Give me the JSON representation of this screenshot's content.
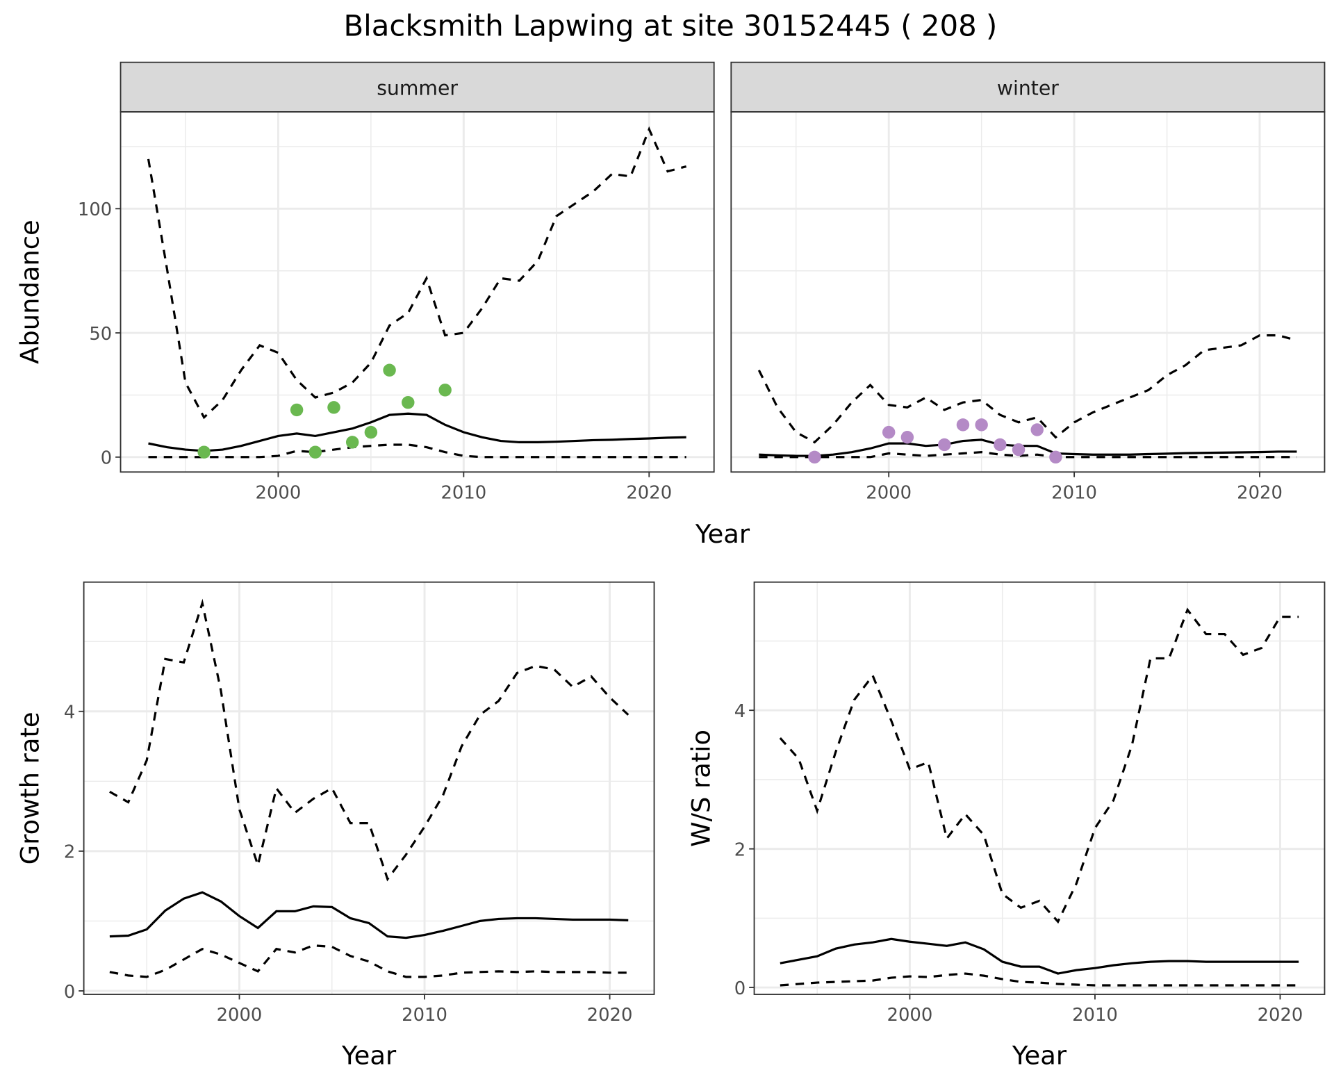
{
  "title": "Blacksmith Lapwing at site 30152445 ( 208 )",
  "colors": {
    "summer_points": "#6ab850",
    "winter_points": "#b48ac6",
    "line": "#000000",
    "strip_bg": "#d9d9d9",
    "grid": "#ebebeb"
  },
  "chart_data": [
    {
      "type": "line",
      "panel": "summer",
      "strip": "summer",
      "xlabel": "Year",
      "ylabel": "Abundance",
      "xlim": [
        1991.5,
        2023.5
      ],
      "ylim": [
        -6,
        139
      ],
      "xticks": [
        2000,
        2010,
        2020
      ],
      "yticks": [
        0,
        50,
        100
      ],
      "years": [
        1993,
        1994,
        1995,
        1996,
        1997,
        1998,
        1999,
        2000,
        2001,
        2002,
        2003,
        2004,
        2005,
        2006,
        2007,
        2008,
        2009,
        2010,
        2011,
        2012,
        2013,
        2014,
        2015,
        2016,
        2017,
        2018,
        2019,
        2020,
        2021,
        2022
      ],
      "series": [
        {
          "name": "upper",
          "style": "dashed",
          "values": [
            120,
            76,
            30,
            16,
            23,
            35,
            45,
            42,
            31,
            24,
            26,
            30,
            38,
            53,
            58,
            72,
            49,
            50,
            60,
            72,
            71,
            79,
            97,
            102,
            107,
            114,
            113,
            132,
            115,
            117
          ]
        },
        {
          "name": "estimate",
          "style": "solid",
          "values": [
            5.5,
            4,
            3,
            2.5,
            3,
            4.5,
            6.5,
            8.5,
            9.5,
            8.5,
            10,
            11.5,
            14,
            17,
            17.5,
            17,
            13,
            10,
            8,
            6.5,
            6,
            6,
            6.2,
            6.5,
            6.8,
            7,
            7.3,
            7.5,
            7.8,
            8
          ]
        },
        {
          "name": "lower",
          "style": "dashed",
          "values": [
            0,
            0,
            0,
            0,
            0,
            0,
            0,
            0.5,
            2.5,
            2,
            3,
            4,
            4.5,
            5,
            5,
            4,
            2,
            0.5,
            0,
            0,
            0,
            0,
            0,
            0,
            0,
            0,
            0,
            0,
            0,
            0
          ]
        }
      ],
      "points": {
        "x": [
          1996,
          2001,
          2002,
          2003,
          2004,
          2005,
          2006,
          2007,
          2009
        ],
        "y": [
          2,
          19,
          2,
          20,
          6,
          10,
          35,
          22,
          27
        ]
      }
    },
    {
      "type": "line",
      "panel": "winter",
      "strip": "winter",
      "xlabel": "Year",
      "ylabel": "",
      "xlim": [
        1991.5,
        2023.5
      ],
      "ylim": [
        -6,
        139
      ],
      "xticks": [
        2000,
        2010,
        2020
      ],
      "yticks": [],
      "years": [
        1993,
        1994,
        1995,
        1996,
        1997,
        1998,
        1999,
        2000,
        2001,
        2002,
        2003,
        2004,
        2005,
        2006,
        2007,
        2008,
        2009,
        2010,
        2011,
        2012,
        2013,
        2014,
        2015,
        2016,
        2017,
        2018,
        2019,
        2020,
        2021,
        2022
      ],
      "series": [
        {
          "name": "upper",
          "style": "dashed",
          "values": [
            35,
            20,
            10,
            6,
            13,
            22,
            29,
            21,
            20,
            24,
            19,
            22,
            23,
            17,
            14,
            16,
            8,
            14,
            18,
            21,
            24,
            27,
            33,
            37,
            43,
            44,
            45,
            49,
            49,
            47
          ]
        },
        {
          "name": "estimate",
          "style": "solid",
          "values": [
            1,
            0.7,
            0.5,
            0.5,
            1,
            2,
            3.5,
            5.5,
            5.5,
            4.5,
            5,
            6.5,
            7,
            5,
            4.5,
            4.5,
            1.5,
            1.2,
            1,
            1,
            1,
            1.2,
            1.4,
            1.6,
            1.7,
            1.8,
            1.9,
            2,
            2.2,
            2.2
          ]
        },
        {
          "name": "lower",
          "style": "dashed",
          "values": [
            0,
            0,
            0,
            0,
            0,
            0,
            0,
            1.5,
            1,
            0.5,
            1,
            1.5,
            2,
            1,
            0.5,
            1,
            0,
            0,
            0,
            0,
            0,
            0,
            0,
            0,
            0,
            0,
            0,
            0,
            0,
            0
          ]
        }
      ],
      "points": {
        "x": [
          1996,
          2000,
          2001,
          2003,
          2004,
          2005,
          2006,
          2007,
          2008,
          2009
        ],
        "y": [
          0,
          10,
          8,
          5,
          13,
          13,
          5,
          3,
          11,
          0
        ]
      }
    },
    {
      "type": "line",
      "panel": "growth",
      "xlabel": "Year",
      "ylabel": "Growth rate",
      "xlim": [
        1991.6,
        2022.4
      ],
      "ylim": [
        -0.05,
        5.85
      ],
      "xticks": [
        2000,
        2010,
        2020
      ],
      "yticks": [
        0,
        2,
        4
      ],
      "years": [
        1993,
        1994,
        1995,
        1996,
        1997,
        1998,
        1999,
        2000,
        2001,
        2002,
        2003,
        2004,
        2005,
        2006,
        2007,
        2008,
        2009,
        2010,
        2011,
        2012,
        2013,
        2014,
        2015,
        2016,
        2017,
        2018,
        2019,
        2020,
        2021
      ],
      "series": [
        {
          "name": "upper",
          "style": "dashed",
          "values": [
            2.85,
            2.7,
            3.3,
            4.75,
            4.7,
            5.55,
            4.3,
            2.6,
            1.8,
            2.9,
            2.55,
            2.75,
            2.9,
            2.4,
            2.4,
            1.6,
            1.95,
            2.35,
            2.8,
            3.5,
            3.95,
            4.15,
            4.55,
            4.65,
            4.6,
            4.35,
            4.5,
            4.2,
            3.95
          ]
        },
        {
          "name": "estimate",
          "style": "solid",
          "values": [
            0.78,
            0.79,
            0.88,
            1.15,
            1.32,
            1.41,
            1.28,
            1.07,
            0.9,
            1.14,
            1.14,
            1.21,
            1.2,
            1.04,
            0.97,
            0.78,
            0.76,
            0.8,
            0.86,
            0.93,
            1,
            1.03,
            1.04,
            1.04,
            1.03,
            1.02,
            1.02,
            1.02,
            1.01
          ]
        },
        {
          "name": "lower",
          "style": "dashed",
          "values": [
            0.27,
            0.22,
            0.2,
            0.3,
            0.45,
            0.6,
            0.52,
            0.4,
            0.28,
            0.6,
            0.55,
            0.65,
            0.63,
            0.5,
            0.42,
            0.28,
            0.2,
            0.2,
            0.22,
            0.26,
            0.27,
            0.28,
            0.27,
            0.28,
            0.27,
            0.27,
            0.27,
            0.26,
            0.26
          ]
        }
      ]
    },
    {
      "type": "line",
      "panel": "ratio",
      "xlabel": "Year",
      "ylabel": "W/S ratio",
      "xlim": [
        1991.6,
        2022.4
      ],
      "ylim": [
        -0.1,
        5.85
      ],
      "xticks": [
        2000,
        2010,
        2020
      ],
      "yticks": [
        0,
        2,
        4
      ],
      "years": [
        1993,
        1994,
        1995,
        1996,
        1997,
        1998,
        1999,
        2000,
        2001,
        2002,
        2003,
        2004,
        2005,
        2006,
        2007,
        2008,
        2009,
        2010,
        2011,
        2012,
        2013,
        2014,
        2015,
        2016,
        2017,
        2018,
        2019,
        2020,
        2021
      ],
      "series": [
        {
          "name": "upper",
          "style": "dashed",
          "values": [
            3.6,
            3.3,
            2.55,
            3.4,
            4.15,
            4.5,
            3.85,
            3.15,
            3.25,
            2.15,
            2.5,
            2.2,
            1.35,
            1.15,
            1.25,
            0.95,
            1.5,
            2.3,
            2.7,
            3.5,
            4.75,
            4.75,
            5.45,
            5.1,
            5.1,
            4.8,
            4.9,
            5.35,
            5.35
          ]
        },
        {
          "name": "estimate",
          "style": "solid",
          "values": [
            0.35,
            0.4,
            0.45,
            0.56,
            0.62,
            0.65,
            0.7,
            0.66,
            0.63,
            0.6,
            0.65,
            0.55,
            0.37,
            0.3,
            0.3,
            0.2,
            0.25,
            0.28,
            0.32,
            0.35,
            0.37,
            0.38,
            0.38,
            0.37,
            0.37,
            0.37,
            0.37,
            0.37,
            0.37
          ]
        },
        {
          "name": "lower",
          "style": "dashed",
          "values": [
            0.03,
            0.05,
            0.07,
            0.08,
            0.09,
            0.1,
            0.14,
            0.16,
            0.15,
            0.18,
            0.2,
            0.17,
            0.12,
            0.08,
            0.07,
            0.05,
            0.04,
            0.03,
            0.03,
            0.03,
            0.03,
            0.03,
            0.03,
            0.03,
            0.03,
            0.03,
            0.03,
            0.03,
            0.03
          ]
        }
      ]
    }
  ]
}
